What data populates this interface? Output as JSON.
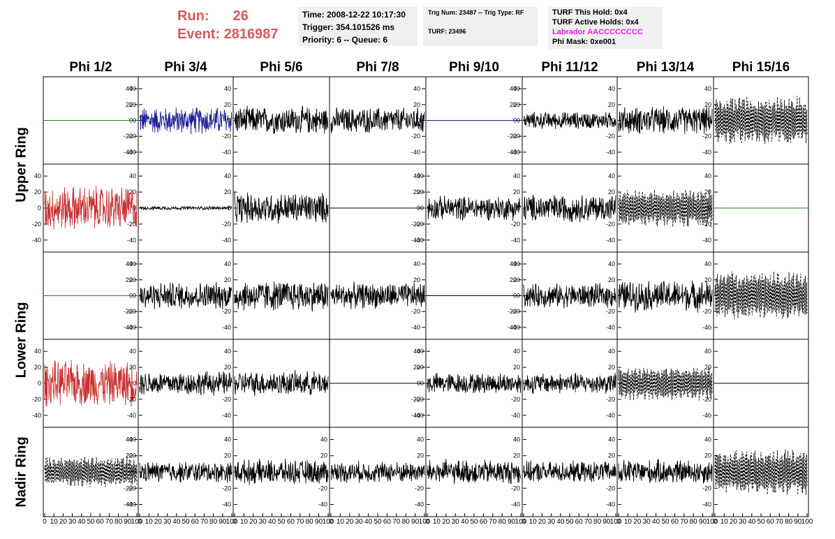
{
  "header": {
    "run_label": "Run:",
    "run_value": "26",
    "event_label": "Event:",
    "event_value": "2816987"
  },
  "time_box": {
    "time": "Time: 2008-12-22 10:17:30",
    "trigger": "Trigger: 354.101526 ms",
    "priority": "Priority: 6 -- Queue: 6"
  },
  "trig_box": {
    "trig": "Trig Num: 23487 -- Trig Type: RF",
    "turf": "TURF: 23496"
  },
  "turf_box": {
    "hold": "TURF This Hold: 0x4",
    "active": "TURF Active Holds: 0x4",
    "labrador": "Labrador AACCCCCCCC",
    "phimask": "Phi Mask: 0xe001"
  },
  "columns": [
    "Phi 1/2",
    "Phi 3/4",
    "Phi 5/6",
    "Phi 7/8",
    "Phi 9/10",
    "Phi 11/12",
    "Phi 13/14",
    "Phi 15/16"
  ],
  "rows": [
    "Upper Ring",
    "Lower Ring",
    "Nadir Ring"
  ],
  "chart_data": {
    "type": "line",
    "layout": "grid of 5 rows x 8 columns of waveform panels",
    "xlim": [
      0,
      100
    ],
    "ylim": [
      -55,
      55
    ],
    "x_ticks": [
      "0",
      "10",
      "20",
      "30",
      "40",
      "50",
      "60",
      "70",
      "80",
      "90",
      "100"
    ],
    "y_ticks": [
      "40",
      "20",
      "0",
      "-20",
      "-40"
    ],
    "colors": {
      "black": "#000000",
      "blue": "#20209a",
      "red": "#c83030",
      "green": "#1e8a1e"
    },
    "panels": [
      [
        {
          "style": "flat",
          "color": "green",
          "amp": 0,
          "axis": "right"
        },
        {
          "style": "noise",
          "color": "blue",
          "amp": 16,
          "axis": "left"
        },
        {
          "style": "noise",
          "color": "black",
          "amp": 16,
          "axis": "left"
        },
        {
          "style": "noise",
          "color": "black",
          "amp": 15,
          "axis": "right"
        },
        {
          "style": "flat",
          "color": "blue",
          "amp": 0,
          "axis": "right"
        },
        {
          "style": "noise",
          "color": "black",
          "amp": 10,
          "axis": "left"
        },
        {
          "style": "noise",
          "color": "black",
          "amp": 16,
          "axis": "left"
        },
        {
          "style": "dashed",
          "color": "black",
          "amp": 26,
          "axis": "left"
        }
      ],
      [
        {
          "style": "noise",
          "color": "red",
          "amp": 26,
          "axis": "left"
        },
        {
          "style": "noise",
          "color": "black",
          "amp": 2,
          "axis": "left"
        },
        {
          "style": "noise",
          "color": "black",
          "amp": 18,
          "axis": "left"
        },
        {
          "style": "flat",
          "color": "black",
          "amp": 0,
          "axis": "right"
        },
        {
          "style": "noise",
          "color": "black",
          "amp": 14,
          "axis": "left"
        },
        {
          "style": "noise",
          "color": "black",
          "amp": 16,
          "axis": "left"
        },
        {
          "style": "dashed",
          "color": "black",
          "amp": 20,
          "axis": "left"
        },
        {
          "style": "flat",
          "color": "green",
          "amp": 0,
          "axis": "left"
        }
      ],
      [
        {
          "style": "flat",
          "color": "green",
          "amp": 0,
          "axis": "right"
        },
        {
          "style": "noise",
          "color": "black",
          "amp": 16,
          "axis": "left"
        },
        {
          "style": "noise",
          "color": "black",
          "amp": 18,
          "axis": "left"
        },
        {
          "style": "noise",
          "color": "black",
          "amp": 15,
          "axis": "right"
        },
        {
          "style": "flat",
          "color": "black",
          "amp": 0,
          "axis": "right"
        },
        {
          "style": "noise",
          "color": "black",
          "amp": 14,
          "axis": "left"
        },
        {
          "style": "noise",
          "color": "black",
          "amp": 18,
          "axis": "left"
        },
        {
          "style": "dashed",
          "color": "black",
          "amp": 26,
          "axis": "left"
        }
      ],
      [
        {
          "style": "noise",
          "color": "red",
          "amp": 26,
          "axis": "left"
        },
        {
          "style": "noise",
          "color": "black",
          "amp": 14,
          "axis": "left"
        },
        {
          "style": "noise",
          "color": "black",
          "amp": 14,
          "axis": "left"
        },
        {
          "style": "flat",
          "color": "black",
          "amp": 0,
          "axis": "right"
        },
        {
          "style": "noise",
          "color": "black",
          "amp": 12,
          "axis": "left"
        },
        {
          "style": "noise",
          "color": "black",
          "amp": 12,
          "axis": "left"
        },
        {
          "style": "dashed",
          "color": "black",
          "amp": 18,
          "axis": "left"
        },
        {
          "style": "flat",
          "color": "black",
          "amp": 0,
          "axis": "left"
        }
      ],
      [
        {
          "style": "dashed",
          "color": "black",
          "amp": 16,
          "axis": "right"
        },
        {
          "style": "noise",
          "color": "black",
          "amp": 12,
          "axis": "left"
        },
        {
          "style": "noise",
          "color": "black",
          "amp": 14,
          "axis": "left"
        },
        {
          "style": "noise",
          "color": "black",
          "amp": 12,
          "axis": "left"
        },
        {
          "style": "noise",
          "color": "black",
          "amp": 14,
          "axis": "left"
        },
        {
          "style": "noise",
          "color": "black",
          "amp": 12,
          "axis": "left"
        },
        {
          "style": "noise",
          "color": "black",
          "amp": 14,
          "axis": "left"
        },
        {
          "style": "dashed",
          "color": "black",
          "amp": 24,
          "axis": "left"
        }
      ]
    ]
  }
}
